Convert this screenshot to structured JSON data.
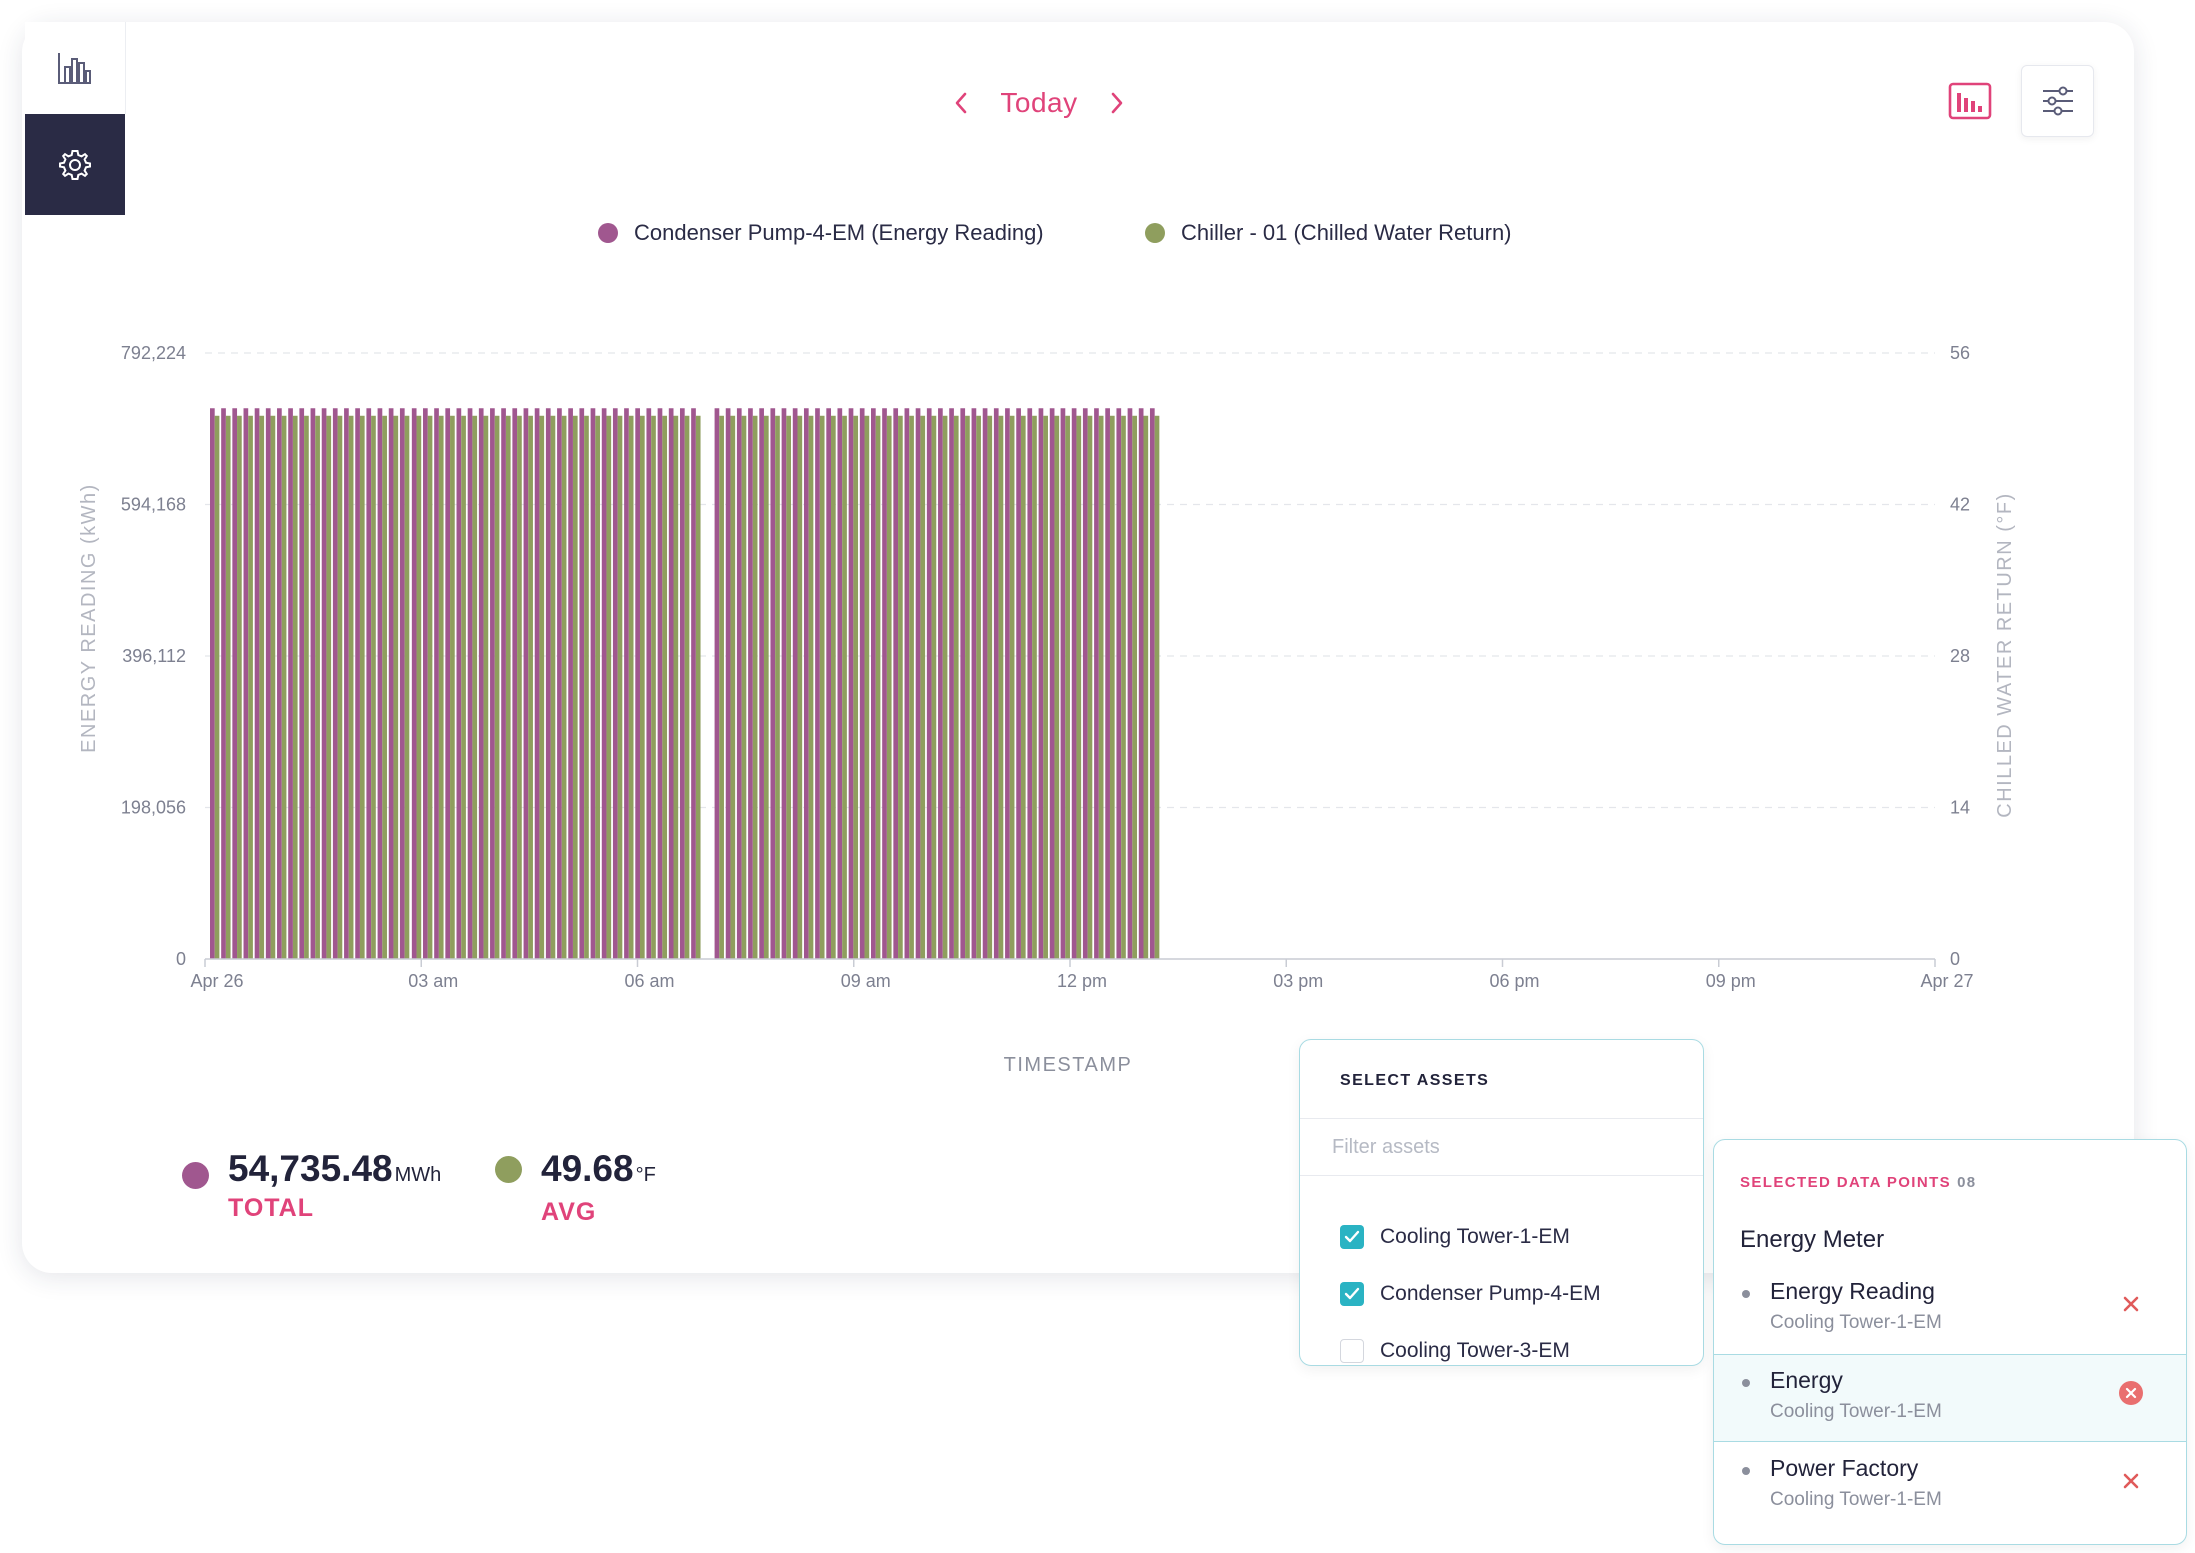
{
  "sidebar": {
    "items": [
      {
        "icon": "bar-chart-icon",
        "active": false
      },
      {
        "icon": "gear-icon",
        "active": true
      }
    ]
  },
  "nav": {
    "label": "Today",
    "prev_icon": "chevron-left-icon",
    "next_icon": "chevron-right-icon"
  },
  "toolbar": {
    "chart_toggle_icon": "bar-chart-icon",
    "filter_icon": "sliders-icon"
  },
  "colors": {
    "accent": "#e0437a",
    "series1": "#a0578f",
    "series2": "#8f9e5e",
    "teal": "#2ab3c3",
    "dark": "#2a2b45"
  },
  "chart_data": {
    "type": "bar",
    "x_labels": [
      "Apr 26",
      "03 am",
      "06 am",
      "09 am",
      "12 pm",
      "03 pm",
      "06 pm",
      "09 pm",
      "Apr 27"
    ],
    "xlabel": "TIMESTAMP",
    "ylabel": "ENERGY READING (kWh)",
    "y2label": "CHILLED WATER RETURN (°F)",
    "y_ticks": [
      "0",
      "198,056",
      "396,112",
      "594,168",
      "792,224"
    ],
    "y2_ticks": [
      "0",
      "14",
      "28",
      "42",
      "56"
    ],
    "ylim": [
      0,
      792224
    ],
    "y2lim": [
      0,
      56
    ],
    "grid": true,
    "legend_position": "top-center",
    "series": [
      {
        "name": "Condenser Pump-4-EM (Energy Reading)",
        "axis": "left"
      },
      {
        "name": "Chiller - 01 (Chilled Water Return)",
        "axis": "right"
      }
    ],
    "groups": [
      {
        "start_hour": 0.0,
        "count": 18
      },
      {
        "start_hour": 2.8,
        "count": 26
      },
      {
        "start_hour": 7.0,
        "count": 31
      },
      {
        "start_hour": 11.8,
        "count": 9
      }
    ],
    "bar_step_hours": 0.155,
    "series1_value": 720000,
    "series2_value": 50.2
  },
  "summary": [
    {
      "value": "54,735.48",
      "unit": "MWh",
      "label": "TOTAL",
      "color": "#a0578f"
    },
    {
      "value": "49.68",
      "unit": "°F",
      "label": "AVG",
      "color": "#8f9e5e"
    }
  ],
  "assets_panel": {
    "title": "SELECT ASSETS",
    "filter_placeholder": "Filter assets",
    "items": [
      {
        "label": "Cooling Tower-1-EM",
        "checked": true
      },
      {
        "label": "Condenser Pump-4-EM",
        "checked": true
      },
      {
        "label": "Cooling Tower-3-EM",
        "checked": false
      }
    ]
  },
  "points_panel": {
    "title": "SELECTED DATA POINTS",
    "count": "08",
    "group": "Energy Meter",
    "items": [
      {
        "name": "Energy Reading",
        "asset": "Cooling Tower-1-EM",
        "active": false
      },
      {
        "name": "Energy",
        "asset": "Cooling Tower-1-EM",
        "active": true
      },
      {
        "name": "Power Factory",
        "asset": "Cooling Tower-1-EM",
        "active": false
      }
    ]
  }
}
